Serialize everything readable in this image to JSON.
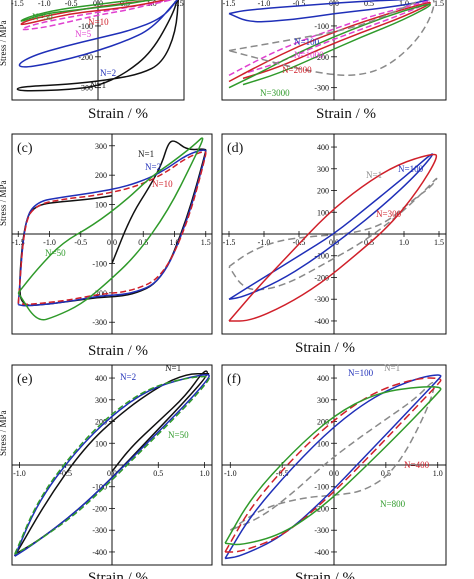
{
  "figure": {
    "ylabel_fragment": "Stress / MPa",
    "xlabel": "Strain / %"
  },
  "colors": {
    "black": "#111111",
    "red": "#d0202a",
    "blue": "#1f2fb8",
    "green": "#2f9a2a",
    "magenta": "#e040d0",
    "gray": "#8a8a8a"
  },
  "chart_data": [
    {
      "panel": "a",
      "type": "line",
      "letter": "",
      "xlabel": "Strain / %",
      "xlim": [
        -1.6,
        1.6
      ],
      "ylim": [
        -340,
        10
      ],
      "xticks": [
        "-1.5",
        "-1.0",
        "-0.5",
        "0.0",
        "0.5",
        "1.0",
        "1.5"
      ],
      "yticks": [
        "-100",
        "-200",
        "-300"
      ],
      "series": [
        {
          "name": "N=1",
          "color": "black",
          "dash": "none",
          "x": [
            1.5,
            1.4,
            1.0,
            0.5,
            0.0,
            -0.5,
            -1.0,
            -1.5,
            -1.5,
            -1.2,
            -0.6,
            0.2,
            0.8,
            1.2,
            1.45,
            1.5
          ],
          "y": [
            0,
            -60,
            -185,
            -255,
            -295,
            -305,
            -310,
            -310,
            -300,
            -295,
            -290,
            -275,
            -255,
            -220,
            -120,
            0
          ]
        },
        {
          "name": "N=2",
          "color": "blue",
          "dash": "none",
          "x": [
            1.5,
            1.0,
            0.5,
            0.0,
            -0.5,
            -1.0,
            -1.4,
            -1.5,
            -1.2,
            -0.6,
            0.0,
            0.6,
            1.2,
            1.5
          ],
          "y": [
            -10,
            -110,
            -150,
            -180,
            -205,
            -225,
            -235,
            -225,
            -195,
            -165,
            -140,
            -115,
            -75,
            -10
          ]
        },
        {
          "name": "N=5",
          "color": "magenta",
          "dash": "6,3",
          "x": [
            1.5,
            1.0,
            0.5,
            0.0,
            -0.5,
            -1.0,
            -1.5,
            -1.2,
            -0.5,
            0.2,
            0.9,
            1.5
          ],
          "y": [
            -10,
            -30,
            -50,
            -65,
            -85,
            -105,
            -115,
            -95,
            -70,
            -50,
            -30,
            -10
          ]
        },
        {
          "name": "N=10",
          "color": "red",
          "dash": "none",
          "x": [
            1.5,
            1.0,
            0.5,
            0.0,
            -0.5,
            -1.0,
            -1.5,
            -1.3,
            -0.6,
            0.1,
            0.8,
            1.5
          ],
          "y": [
            -5,
            -25,
            -40,
            -50,
            -60,
            -80,
            -100,
            -80,
            -55,
            -35,
            -20,
            -5
          ]
        },
        {
          "name": "N=50",
          "color": "green",
          "dash": "none",
          "x": [
            1.5,
            1.0,
            0.5,
            0.0,
            -0.5,
            -1.0,
            -1.5,
            -1.3,
            -0.7,
            0.0,
            0.7,
            1.5
          ],
          "y": [
            -5,
            -15,
            -30,
            -40,
            -50,
            -60,
            -90,
            -70,
            -45,
            -30,
            -15,
            -5
          ]
        }
      ]
    },
    {
      "panel": "b",
      "type": "line",
      "letter": "",
      "xlabel": "Strain / %",
      "xlim": [
        -1.6,
        1.6
      ],
      "ylim": [
        -340,
        10
      ],
      "xticks": [
        "-1.5",
        "-1.0",
        "-0.5",
        "0.0",
        "0.5",
        "1.0",
        "1.5"
      ],
      "yticks": [
        "-100",
        "-200",
        "-300"
      ],
      "series": [
        {
          "name": "N=100",
          "color": "blue",
          "dash": "none",
          "x": [
            -1.5,
            -1.3,
            -0.8,
            -0.2,
            0.4,
            1.0,
            1.5,
            1.2,
            0.6,
            0.0,
            -0.6,
            -1.2,
            -1.5
          ],
          "y": [
            -60,
            -50,
            -40,
            -30,
            -20,
            -15,
            -5,
            -25,
            -45,
            -60,
            -80,
            -90,
            -60
          ]
        },
        {
          "name": "N=1000",
          "color": "magenta",
          "dash": "6,3",
          "x": [
            -1.5,
            -1.0,
            -0.5,
            0.0,
            0.5,
            1.0,
            1.5,
            1.0,
            0.4,
            -0.2,
            -0.8,
            -1.3
          ],
          "y": [
            -260,
            -200,
            -150,
            -110,
            -70,
            -40,
            -10,
            -60,
            -110,
            -160,
            -220,
            -255
          ]
        },
        {
          "name": "N=2000",
          "color": "red",
          "dash": "none",
          "x": [
            -1.5,
            -1.0,
            -0.5,
            0.0,
            0.5,
            1.0,
            1.5,
            1.0,
            0.4,
            -0.2,
            -0.8,
            -1.3
          ],
          "y": [
            -280,
            -220,
            -165,
            -120,
            -80,
            -45,
            -15,
            -70,
            -120,
            -175,
            -235,
            -270
          ]
        },
        {
          "name": "N=3000",
          "color": "green",
          "dash": "none",
          "x": [
            -1.5,
            -1.0,
            -0.5,
            0.0,
            0.5,
            1.0,
            1.5,
            1.0,
            0.4,
            -0.2,
            -0.8,
            -1.3
          ],
          "y": [
            -300,
            -245,
            -185,
            -135,
            -90,
            -50,
            -20,
            -80,
            -135,
            -195,
            -255,
            -290
          ]
        },
        {
          "name": "",
          "color": "gray",
          "dash": "7,4",
          "x": [
            -1.5,
            -1.0,
            -0.5,
            0.0,
            0.5,
            1.0,
            1.5,
            1.3,
            0.8,
            0.3,
            -0.3,
            -1.0,
            -1.5
          ],
          "y": [
            -180,
            -160,
            -140,
            -120,
            -90,
            -40,
            10,
            -120,
            -230,
            -265,
            -250,
            -210,
            -180
          ]
        }
      ]
    },
    {
      "panel": "c",
      "type": "line",
      "letter": "(c)",
      "xlabel": "Strain / %",
      "xlim": [
        -1.6,
        1.6
      ],
      "ylim": [
        -340,
        340
      ],
      "xticks": [
        "-1.5",
        "-1.0",
        "-0.5",
        "0.0",
        "0.5",
        "1.0",
        "1.5"
      ],
      "yticks": [
        "300",
        "200",
        "100",
        "-100",
        "-200",
        "-300"
      ],
      "series": [
        {
          "name": "N=1",
          "color": "black",
          "dash": "none",
          "x": [
            0.0,
            0.3,
            0.6,
            0.8,
            0.9,
            1.0,
            1.2,
            1.5,
            1.5,
            1.2,
            0.8,
            0.3,
            -0.2,
            -0.7,
            -1.1,
            -1.4,
            -1.5,
            -1.4,
            -1.2,
            -0.8,
            -0.3,
            0.0
          ],
          "y": [
            -100,
            60,
            160,
            240,
            310,
            320,
            285,
            290,
            280,
            50,
            -160,
            -210,
            -215,
            -230,
            -240,
            -245,
            -200,
            50,
            100,
            110,
            120,
            130
          ]
        },
        {
          "name": "N=2",
          "color": "blue",
          "dash": "none",
          "x": [
            -1.5,
            -1.4,
            -1.2,
            -0.8,
            -0.3,
            0.2,
            0.6,
            0.9,
            1.2,
            1.5,
            1.5,
            1.2,
            0.8,
            0.3,
            -0.2,
            -0.7,
            -1.1,
            -1.4,
            -1.5
          ],
          "y": [
            -240,
            50,
            110,
            125,
            140,
            160,
            190,
            225,
            270,
            290,
            270,
            40,
            -160,
            -205,
            -210,
            -230,
            -240,
            -245,
            -240
          ]
        },
        {
          "name": "N=10",
          "color": "red",
          "dash": "6,3",
          "x": [
            -1.5,
            -1.4,
            -1.2,
            -0.8,
            -0.3,
            0.2,
            0.6,
            0.9,
            1.2,
            1.5,
            1.5,
            1.2,
            0.8,
            0.3,
            -0.2,
            -0.7,
            -1.1,
            -1.4,
            -1.5
          ],
          "y": [
            -235,
            45,
            100,
            118,
            130,
            150,
            180,
            215,
            260,
            285,
            265,
            30,
            -150,
            -195,
            -205,
            -225,
            -235,
            -240,
            -235
          ]
        },
        {
          "name": "N=50",
          "color": "green",
          "dash": "none",
          "x": [
            -1.5,
            -1.2,
            -0.8,
            -0.3,
            0.2,
            0.6,
            1.0,
            1.3,
            1.5,
            1.3,
            0.9,
            0.4,
            -0.1,
            -0.5,
            -0.9,
            -1.2,
            -1.5
          ],
          "y": [
            -200,
            -120,
            -30,
            30,
            110,
            190,
            250,
            300,
            340,
            250,
            80,
            -70,
            -170,
            -240,
            -280,
            -300,
            -200
          ]
        }
      ]
    },
    {
      "panel": "d",
      "type": "line",
      "letter": "(d)",
      "xlabel": "Strain / %",
      "xlim": [
        -1.6,
        1.6
      ],
      "ylim": [
        -460,
        460
      ],
      "xticks": [
        "-1.5",
        "-1.0",
        "-0.5",
        "0.0",
        "0.5",
        "1.0",
        "1.5"
      ],
      "yticks": [
        "400",
        "300",
        "200",
        "100",
        "-100",
        "-200",
        "-300",
        "-400"
      ],
      "series": [
        {
          "name": "N=1",
          "color": "gray",
          "dash": "7,4",
          "x": [
            -1.5,
            -1.2,
            -0.8,
            -0.3,
            0.2,
            0.7,
            1.1,
            1.4,
            1.5,
            1.3,
            0.9,
            0.4,
            -0.1,
            -0.6,
            -1.0,
            -1.3,
            -1.5
          ],
          "y": [
            -150,
            -80,
            -30,
            -10,
            0,
            40,
            150,
            220,
            270,
            200,
            80,
            -40,
            -130,
            -220,
            -260,
            -250,
            -150
          ]
        },
        {
          "name": "N=100",
          "color": "blue",
          "dash": "none",
          "x": [
            -1.5,
            -1.0,
            -0.5,
            0.0,
            0.5,
            1.0,
            1.5,
            1.2,
            0.7,
            0.2,
            -0.3,
            -0.8,
            -1.3,
            -1.5
          ],
          "y": [
            -300,
            -200,
            -100,
            0,
            130,
            260,
            400,
            280,
            130,
            0,
            -120,
            -220,
            -290,
            -300
          ]
        },
        {
          "name": "N=300",
          "color": "red",
          "dash": "none",
          "x": [
            -1.5,
            -1.1,
            -0.6,
            -0.1,
            0.4,
            0.9,
            1.4,
            1.5,
            1.2,
            0.8,
            0.3,
            -0.2,
            -0.7,
            -1.2,
            -1.5
          ],
          "y": [
            -400,
            -250,
            -80,
            90,
            220,
            320,
            370,
            360,
            200,
            40,
            -100,
            -230,
            -330,
            -400,
            -400
          ]
        }
      ]
    },
    {
      "panel": "e",
      "type": "line",
      "letter": "(e)",
      "xlabel": "Strain / %",
      "xlim": [
        -1.08,
        1.08
      ],
      "ylim": [
        -460,
        460
      ],
      "xticks": [
        "-1.0",
        "-0.5",
        "0.0",
        "0.5",
        "1.0"
      ],
      "yticks": [
        "400",
        "300",
        "200",
        "100",
        "-100",
        "-200",
        "-300",
        "-400"
      ],
      "series": [
        {
          "name": "N=1",
          "color": "black",
          "dash": "none",
          "x": [
            0.0,
            0.2,
            0.5,
            0.8,
            1.0,
            1.05,
            0.8,
            0.4,
            0.0,
            -0.4,
            -0.8,
            -1.05,
            -1.05,
            -0.7,
            -0.3,
            0.1,
            0.5,
            0.8,
            1.05
          ],
          "y": [
            -30,
            80,
            200,
            320,
            440,
            420,
            300,
            120,
            -60,
            -220,
            -350,
            -410,
            -420,
            -160,
            80,
            240,
            360,
            420,
            420
          ]
        },
        {
          "name": "N=2",
          "color": "blue",
          "dash": "none",
          "x": [
            -1.05,
            -0.8,
            -0.4,
            0.0,
            0.4,
            0.8,
            1.05,
            1.05,
            0.8,
            0.4,
            0.0,
            -0.4,
            -0.8,
            -1.05
          ],
          "y": [
            -420,
            -170,
            60,
            230,
            350,
            400,
            420,
            400,
            280,
            110,
            -60,
            -220,
            -350,
            -420
          ]
        },
        {
          "name": "N=50",
          "color": "green",
          "dash": "6,3",
          "x": [
            -1.05,
            -0.8,
            -0.4,
            0.0,
            0.4,
            0.8,
            1.05,
            1.05,
            0.8,
            0.4,
            0.0,
            -0.4,
            -0.8,
            -1.05
          ],
          "y": [
            -410,
            -160,
            70,
            240,
            355,
            400,
            410,
            390,
            270,
            100,
            -70,
            -230,
            -350,
            -410
          ]
        }
      ]
    },
    {
      "panel": "f",
      "type": "line",
      "letter": "(f)",
      "xlabel": "Strain / %",
      "xlim": [
        -1.08,
        1.08
      ],
      "ylim": [
        -460,
        460
      ],
      "xticks": [
        "-1.0",
        "-0.5",
        "0.0",
        "0.5",
        "1.0"
      ],
      "yticks": [
        "400",
        "300",
        "200",
        "100",
        "-100",
        "-200",
        "-300",
        "-400"
      ],
      "series": [
        {
          "name": "N=1",
          "color": "gray",
          "dash": "7,4",
          "x": [
            -1.0,
            -0.7,
            -0.3,
            0.0,
            0.3,
            0.6,
            0.9,
            1.0,
            0.8,
            0.5,
            0.2,
            -0.1,
            -0.4,
            -0.7,
            -1.0
          ],
          "y": [
            -300,
            -200,
            -150,
            -140,
            -120,
            -20,
            250,
            410,
            310,
            210,
            110,
            0,
            -130,
            -240,
            -300
          ]
        },
        {
          "name": "N=100",
          "color": "blue",
          "dash": "none",
          "x": [
            -1.05,
            -0.8,
            -0.4,
            0.0,
            0.4,
            0.8,
            1.05,
            1.0,
            0.7,
            0.3,
            -0.1,
            -0.5,
            -0.9,
            -1.05
          ],
          "y": [
            -430,
            -230,
            -10,
            180,
            320,
            400,
            420,
            390,
            240,
            40,
            -160,
            -330,
            -420,
            -430
          ]
        },
        {
          "name": "N=400",
          "color": "red",
          "dash": "8,4",
          "x": [
            -1.05,
            -0.8,
            -0.4,
            0.0,
            0.4,
            0.8,
            1.05,
            1.0,
            0.7,
            0.3,
            -0.1,
            -0.5,
            -0.9,
            -1.05
          ],
          "y": [
            -400,
            -190,
            30,
            210,
            340,
            400,
            400,
            370,
            220,
            20,
            -170,
            -330,
            -400,
            -400
          ]
        },
        {
          "name": "N=800",
          "color": "green",
          "dash": "none",
          "x": [
            -1.05,
            -0.8,
            -0.4,
            0.0,
            0.4,
            0.8,
            1.05,
            1.0,
            0.7,
            0.3,
            -0.1,
            -0.5,
            -0.9,
            -1.05
          ],
          "y": [
            -360,
            -150,
            60,
            230,
            330,
            360,
            360,
            330,
            180,
            -10,
            -190,
            -320,
            -370,
            -360
          ]
        }
      ]
    }
  ]
}
